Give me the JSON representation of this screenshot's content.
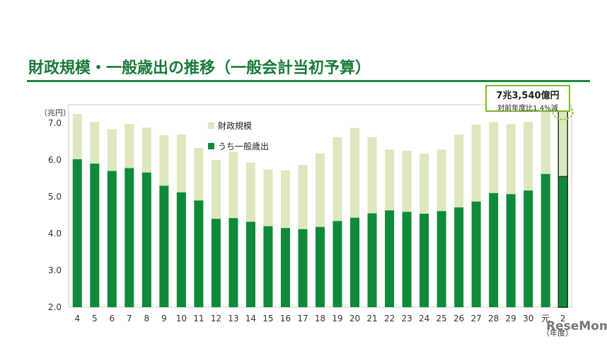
{
  "page": {
    "title": "財政規模・一般歳出の推移（一般会計当初予算）",
    "callout_main": "7兆3,540億円",
    "callout_sub": "対前年度比1.4%減",
    "watermark": "ReseMom"
  },
  "colors": {
    "title": "#1a7a3a",
    "total_bar": "#dde8bf",
    "general_bar": "#0f8a3a",
    "highlight_border": "#1d3a1d",
    "callout_border": "#7bb81e",
    "arrow": "#e87a1e",
    "dashed_circle": "#9fc23a"
  },
  "chart_data": {
    "type": "bar",
    "stacking": "overlay",
    "ylabel": "（兆円）",
    "xlabel": "（年度）",
    "ylim": [
      2.0,
      7.5
    ],
    "yticks": [
      "2.0",
      "3.0",
      "4.0",
      "5.0",
      "6.0",
      "7.0"
    ],
    "categories": [
      "4",
      "5",
      "6",
      "7",
      "8",
      "9",
      "10",
      "11",
      "12",
      "13",
      "14",
      "15",
      "16",
      "17",
      "18",
      "19",
      "20",
      "21",
      "22",
      "23",
      "24",
      "25",
      "26",
      "27",
      "28",
      "29",
      "30",
      "元",
      "2"
    ],
    "series": [
      {
        "name": "財政規模",
        "values": [
          7.25,
          7.03,
          6.84,
          6.98,
          6.88,
          6.67,
          6.69,
          6.32,
          6.0,
          6.22,
          5.93,
          5.74,
          5.72,
          5.86,
          6.18,
          6.62,
          6.87,
          6.62,
          6.28,
          6.25,
          6.17,
          6.28,
          6.69,
          6.96,
          7.03,
          6.97,
          7.03,
          7.45,
          7.35
        ]
      },
      {
        "name": "うち一般歳出",
        "values": [
          6.02,
          5.9,
          5.7,
          5.78,
          5.66,
          5.3,
          5.12,
          4.9,
          4.4,
          4.42,
          4.32,
          4.2,
          4.15,
          4.12,
          4.18,
          4.34,
          4.43,
          4.55,
          4.63,
          4.59,
          4.54,
          4.61,
          4.71,
          4.87,
          5.1,
          5.07,
          5.17,
          5.62,
          5.55
        ]
      }
    ],
    "legend": [
      "財政規模",
      "うち一般歳出"
    ],
    "legend_position": "top-left-inside",
    "grid": false,
    "highlight_category": "2"
  }
}
